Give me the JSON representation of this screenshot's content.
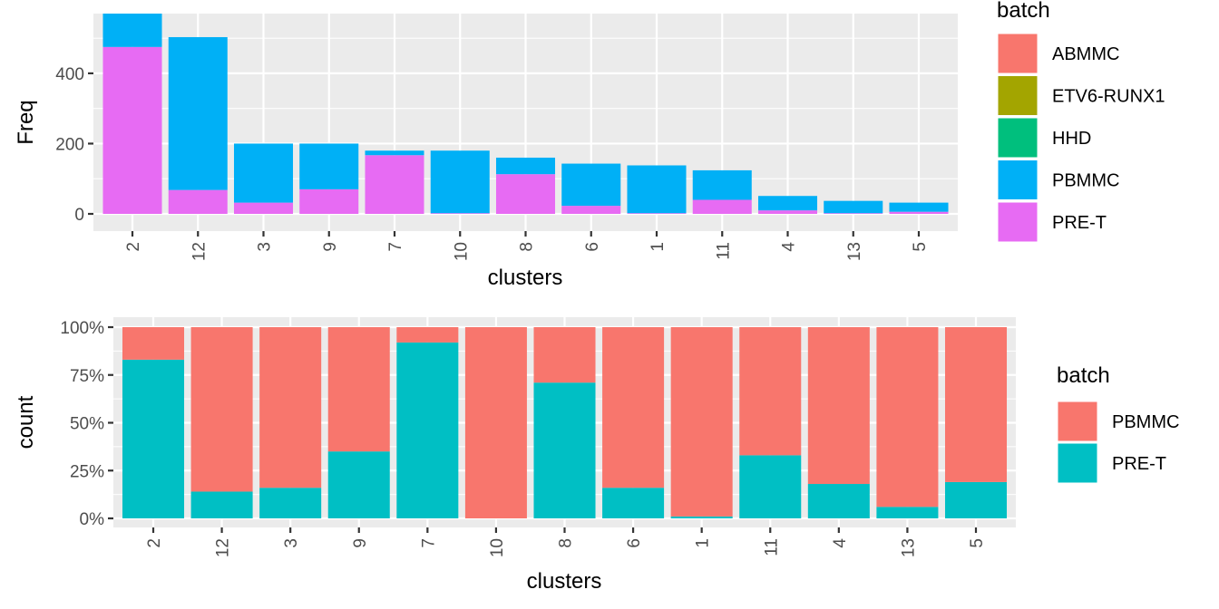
{
  "chart_data": [
    {
      "type": "bar",
      "stacked": true,
      "xlabel": "clusters",
      "ylabel": "Freq",
      "categories": [
        "2",
        "12",
        "3",
        "9",
        "7",
        "10",
        "8",
        "6",
        "1",
        "11",
        "4",
        "13",
        "5"
      ],
      "y_ticks": [
        "0",
        "200",
        "400"
      ],
      "y_tick_values": [
        0,
        200,
        400
      ],
      "ylim": [
        0,
        570
      ],
      "grid": true,
      "legend": {
        "title": "batch",
        "placement": "right",
        "entries": [
          {
            "name": "ABMMC",
            "color": "#F8766D"
          },
          {
            "name": "ETV6-RUNX1",
            "color": "#A3A500"
          },
          {
            "name": "HHD",
            "color": "#00BF7D"
          },
          {
            "name": "PBMMC",
            "color": "#00B0F6"
          },
          {
            "name": "PRE-T",
            "color": "#E76BF3"
          }
        ]
      },
      "series": [
        {
          "name": "PRE-T",
          "color": "#E76BF3",
          "values": [
            475,
            68,
            32,
            70,
            167,
            2,
            113,
            23,
            2,
            40,
            10,
            2,
            6
          ]
        },
        {
          "name": "PBMMC",
          "color": "#00B0F6",
          "values": [
            95,
            435,
            168,
            130,
            13,
            178,
            47,
            120,
            136,
            84,
            41,
            35,
            26
          ]
        }
      ]
    },
    {
      "type": "bar",
      "stacked": true,
      "normalized": true,
      "xlabel": "clusters",
      "ylabel": "count",
      "categories": [
        "2",
        "12",
        "3",
        "9",
        "7",
        "10",
        "8",
        "6",
        "1",
        "11",
        "4",
        "13",
        "5"
      ],
      "y_ticks": [
        "0%",
        "25%",
        "50%",
        "75%",
        "100%"
      ],
      "y_tick_values": [
        0,
        0.25,
        0.5,
        0.75,
        1.0
      ],
      "ylim": [
        0,
        1
      ],
      "grid": true,
      "legend": {
        "title": "batch",
        "placement": "right",
        "entries": [
          {
            "name": "PBMMC",
            "color": "#F8766D"
          },
          {
            "name": "PRE-T",
            "color": "#00BFC4"
          }
        ]
      },
      "series": [
        {
          "name": "PRE-T",
          "color": "#00BFC4",
          "values": [
            0.83,
            0.14,
            0.16,
            0.35,
            0.92,
            0.0,
            0.71,
            0.16,
            0.01,
            0.33,
            0.18,
            0.06,
            0.19
          ]
        },
        {
          "name": "PBMMC",
          "color": "#F8766D",
          "values": [
            0.17,
            0.86,
            0.84,
            0.65,
            0.08,
            1.0,
            0.29,
            0.84,
            0.99,
            0.67,
            0.82,
            0.94,
            0.81
          ]
        }
      ]
    }
  ]
}
